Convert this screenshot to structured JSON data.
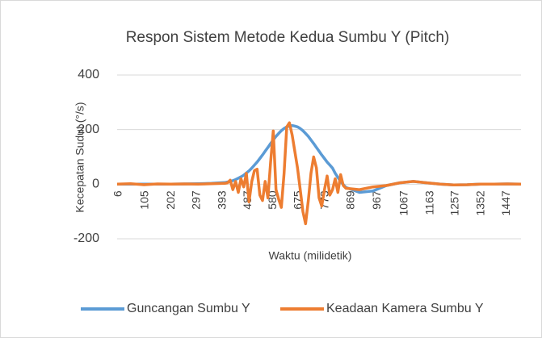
{
  "chart_data": {
    "type": "line",
    "title": "Respon Sistem Metode Kedua Sumbu Y (Pitch)",
    "x_label": "Waktu (milidetik)",
    "y_label": "Kecepatan Sudut (°/s)",
    "x": [
      0,
      50,
      100,
      150,
      200,
      250,
      300,
      350,
      400,
      410,
      420,
      430,
      440,
      450,
      460,
      470,
      480,
      490,
      500,
      510,
      520,
      530,
      540,
      550,
      560,
      570,
      580,
      590,
      600,
      610,
      620,
      630,
      640,
      650,
      660,
      670,
      680,
      690,
      700,
      710,
      720,
      730,
      740,
      750,
      760,
      770,
      780,
      790,
      800,
      810,
      820,
      830,
      840,
      850,
      900,
      950,
      1000,
      1050,
      1100,
      1150,
      1200,
      1250,
      1300,
      1350,
      1400,
      1450,
      1500
    ],
    "series": [
      {
        "name": "Guncangan Sumbu Y",
        "color": "#5b9bd5",
        "values": [
          0,
          0,
          0,
          0,
          0,
          1,
          2,
          3,
          6,
          8,
          10,
          13,
          17,
          22,
          27,
          33,
          41,
          49,
          59,
          70,
          81,
          94,
          107,
          121,
          135,
          149,
          162,
          175,
          186,
          196,
          204,
          210,
          213,
          215,
          213,
          210,
          204,
          196,
          186,
          175,
          162,
          149,
          135,
          121,
          107,
          94,
          81,
          70,
          59,
          40,
          25,
          10,
          -2,
          -12,
          -30,
          -25,
          -5,
          5,
          10,
          5,
          0,
          -3,
          -2,
          0,
          0,
          1,
          0
        ]
      },
      {
        "name": "Keadaan Kamera Sumbu Y",
        "color": "#ed7d31",
        "values": [
          0,
          2,
          -2,
          1,
          0,
          1,
          0,
          2,
          3,
          5,
          15,
          -20,
          10,
          -30,
          20,
          -10,
          40,
          -65,
          10,
          50,
          55,
          -40,
          -60,
          10,
          -50,
          80,
          195,
          -20,
          -55,
          -85,
          40,
          210,
          225,
          180,
          120,
          60,
          -20,
          -100,
          -145,
          -60,
          40,
          100,
          60,
          -50,
          -80,
          -20,
          30,
          -40,
          -20,
          20,
          -30,
          35,
          -5,
          -15,
          -20,
          -10,
          -5,
          5,
          10,
          5,
          0,
          -3,
          -2,
          0,
          0,
          1,
          0
        ]
      }
    ],
    "xlim": [
      0,
      1500
    ],
    "xticks": [
      6,
      105,
      202,
      297,
      393,
      487,
      580,
      675,
      773,
      869,
      967,
      1067,
      1163,
      1257,
      1352,
      1447
    ],
    "ylim": [
      -200,
      400
    ],
    "yticks": [
      -200,
      0,
      200,
      400
    ],
    "grid": true,
    "legend": "bottom"
  }
}
